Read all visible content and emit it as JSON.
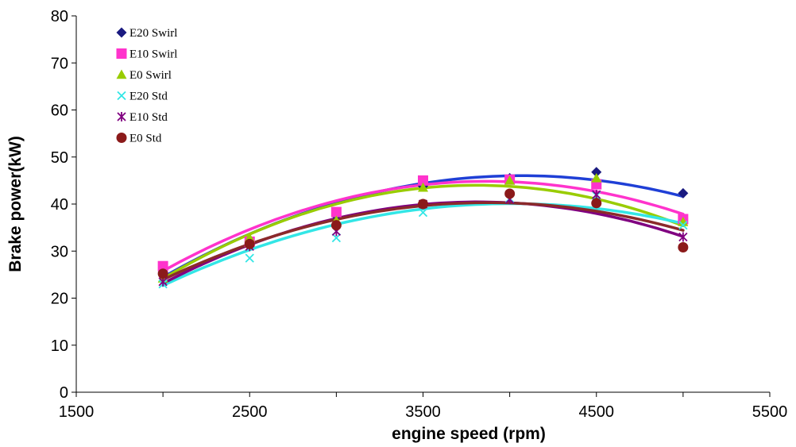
{
  "chart_data": {
    "type": "scatter",
    "title": "",
    "xlabel": "engine speed (rpm)",
    "ylabel": "Brake power(kW)",
    "xlim": [
      1500,
      5500
    ],
    "ylim": [
      0,
      80
    ],
    "xticks": [
      1500,
      2500,
      3500,
      4500,
      5500
    ],
    "yticks": [
      0,
      10,
      20,
      30,
      40,
      50,
      60,
      70,
      80
    ],
    "x_minor_step": 500,
    "grid": false,
    "legend_position": "top-left",
    "x": [
      2000,
      2500,
      3000,
      3500,
      4000,
      4500,
      5000
    ],
    "series": [
      {
        "name": "E20 Swirl",
        "marker": "diamond",
        "color": "#1a1a80",
        "trend_color": "#1f3fd6",
        "values": [
          25.5,
          31.5,
          37.5,
          43.8,
          45.5,
          46.8,
          42.3
        ],
        "trend": [
          24.2,
          33.8,
          40.6,
          44.6,
          45.8,
          44.4,
          42.1
        ]
      },
      {
        "name": "E10 Swirl",
        "marker": "square",
        "color": "#ff33cc",
        "trend_color": "#ff33cc",
        "values": [
          26.8,
          32.0,
          38.3,
          45.0,
          45.2,
          44.2,
          36.8
        ],
        "trend": [
          25.6,
          34.8,
          40.8,
          44.1,
          44.6,
          42.5,
          38.0
        ]
      },
      {
        "name": "E0 Swirl",
        "marker": "triangle",
        "color": "#99cc00",
        "trend_color": "#99cc00",
        "values": [
          24.2,
          32.8,
          36.5,
          43.5,
          45.0,
          45.5,
          36.2
        ],
        "trend": [
          24.2,
          33.5,
          40.0,
          43.5,
          43.8,
          41.0,
          35.4
        ]
      },
      {
        "name": "E20 Std",
        "marker": "x",
        "color": "#33e6e6",
        "trend_color": "#33e6e6",
        "values": [
          23.0,
          28.5,
          32.8,
          38.2,
          41.2,
          41.8,
          35.5
        ],
        "trend": [
          22.7,
          30.2,
          35.7,
          39.0,
          40.1,
          39.0,
          35.9
        ]
      },
      {
        "name": "E10 Std",
        "marker": "star",
        "color": "#800080",
        "trend_color": "#800080",
        "values": [
          23.5,
          31.0,
          34.2,
          40.0,
          41.0,
          42.0,
          33.0
        ],
        "trend": [
          23.3,
          31.2,
          36.8,
          39.8,
          40.4,
          38.4,
          32.8
        ]
      },
      {
        "name": "E0 Std",
        "marker": "circle",
        "color": "#8b1a1a",
        "trend_color": "#8b2a2a",
        "values": [
          25.2,
          31.5,
          35.5,
          40.0,
          42.2,
          40.2,
          30.8
        ],
        "trend": [
          23.8,
          31.6,
          36.8,
          39.7,
          40.2,
          38.2,
          34.6
        ]
      }
    ]
  }
}
